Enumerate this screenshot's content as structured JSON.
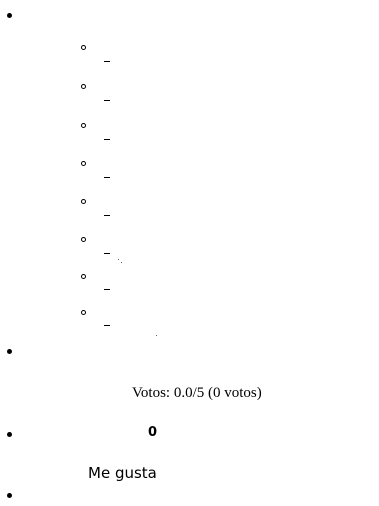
{
  "rating": {
    "stars": [
      {
        "name": "star-1"
      },
      {
        "name": "star-2"
      },
      {
        "name": "star-3"
      },
      {
        "name": "star-4"
      },
      {
        "name": "star-5"
      },
      {
        "name": "star-6"
      },
      {
        "name": "star-7"
      },
      {
        "name": "star-8"
      }
    ],
    "votes_text": "Votos: 0.0/5 (0 votos)"
  },
  "like": {
    "count": "0",
    "label": "Me gusta"
  }
}
